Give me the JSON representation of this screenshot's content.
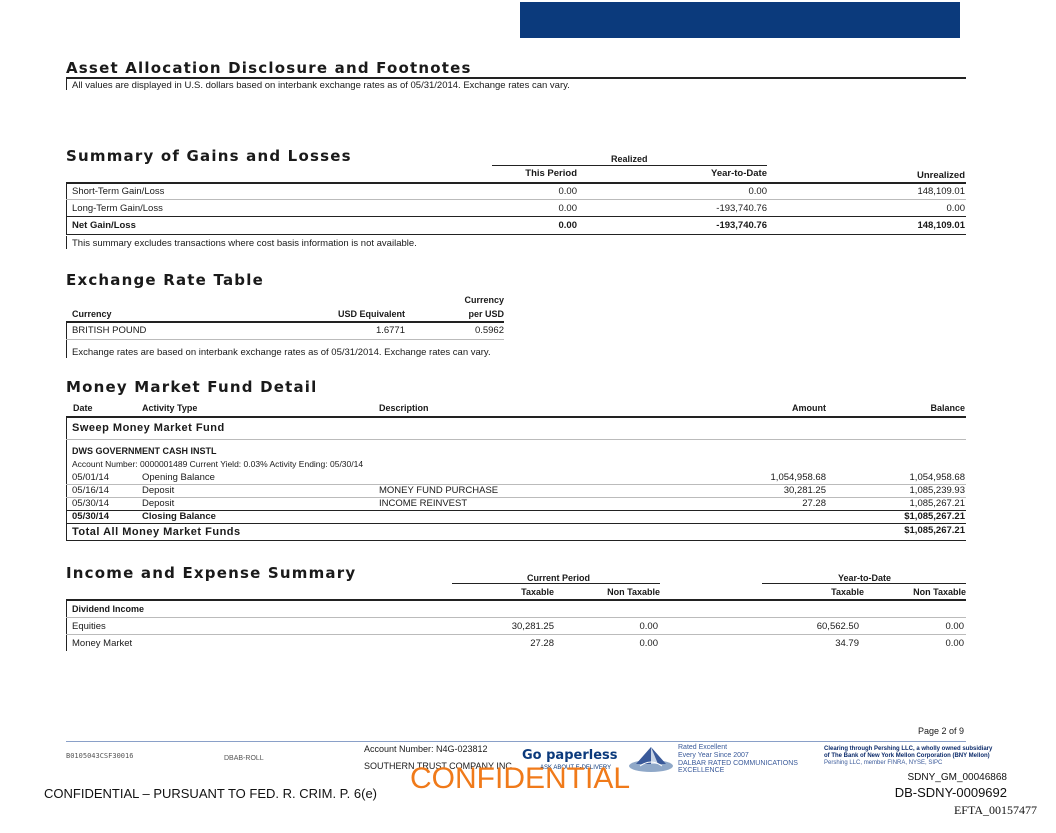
{
  "asset_allocation": {
    "title": "Asset Allocation Disclosure and Footnotes",
    "note": "All values are displayed in U.S. dollars based on interbank exchange rates as of 05/31/2014. Exchange rates can vary."
  },
  "gains_losses": {
    "title": "Summary of Gains and Losses",
    "realized_header": "Realized",
    "columns": [
      "This Period",
      "Year-to-Date",
      "Unrealized"
    ],
    "rows": [
      {
        "label": "Short-Term Gain/Loss",
        "this_period": "0.00",
        "ytd": "0.00",
        "unrealized": "148,109.01"
      },
      {
        "label": "Long-Term Gain/Loss",
        "this_period": "0.00",
        "ytd": "-193,740.76",
        "unrealized": "0.00"
      }
    ],
    "total": {
      "label": "Net Gain/Loss",
      "this_period": "0.00",
      "ytd": "-193,740.76",
      "unrealized": "148,109.01"
    },
    "note": "This summary excludes transactions where cost basis information is not available."
  },
  "exchange": {
    "title": "Exchange Rate Table",
    "col_currency": "Currency",
    "col_usd": "USD Equivalent",
    "col_per_usd_1": "Currency",
    "col_per_usd_2": "per USD",
    "row": {
      "currency": "BRITISH POUND",
      "usd": "1.6771",
      "per_usd": "0.5962"
    },
    "note": "Exchange rates are based on interbank exchange rates as of 05/31/2014.  Exchange rates can vary."
  },
  "mmf": {
    "title": "Money Market Fund Detail",
    "headers": {
      "date": "Date",
      "activity": "Activity Type",
      "description": "Description",
      "amount": "Amount",
      "balance": "Balance"
    },
    "sweep_title": "Sweep Money Market Fund",
    "fund_name": "DWS GOVERNMENT CASH INSTL",
    "account_line": "Account Number: 0000001489  Current Yield:  0.03%  Activity Ending: 05/30/14",
    "rows": [
      {
        "date": "05/01/14",
        "activity": "Opening Balance",
        "description": "",
        "amount": "1,054,958.68",
        "balance": "1,054,958.68"
      },
      {
        "date": "05/16/14",
        "activity": "Deposit",
        "description": "MONEY FUND PURCHASE",
        "amount": "30,281.25",
        "balance": "1,085,239.93"
      },
      {
        "date": "05/30/14",
        "activity": "Deposit",
        "description": "INCOME REINVEST",
        "amount": "27.28",
        "balance": "1,085,267.21"
      }
    ],
    "closing": {
      "date": "05/30/14",
      "activity": "Closing Balance",
      "balance": "$1,085,267.21"
    },
    "total": {
      "label": "Total All Money Market Funds",
      "balance": "$1,085,267.21"
    }
  },
  "income": {
    "title": "Income and Expense Summary",
    "current_period": "Current Period",
    "ytd": "Year-to-Date",
    "taxable": "Taxable",
    "non_taxable": "Non Taxable",
    "group": "Dividend Income",
    "rows": [
      {
        "label": "Equities",
        "cp_taxable": "30,281.25",
        "cp_non": "0.00",
        "ytd_taxable": "60,562.50",
        "ytd_non": "0.00"
      },
      {
        "label": "Money Market",
        "cp_taxable": "27.28",
        "cp_non": "0.00",
        "ytd_taxable": "34.79",
        "ytd_non": "0.00"
      }
    ]
  },
  "footer": {
    "page": "Page 2 of 9",
    "code": "B0105043CSF30016",
    "dbab": "DBAB-ROLL",
    "account": "Account Number: N4G-023812",
    "company": "SOUTHERN TRUST COMPANY INC",
    "go_paperless": "Go paperless",
    "ask_about": "ASK ABOUT E-DELIVERY",
    "rated_1": "Rated Excellent",
    "rated_2": "Every Year Since 2007",
    "rated_3": "DALBAR RATED COMMUNICATIONS",
    "rated_4": "EXCELLENCE",
    "clearing_1": "Clearing through Pershing LLC, a wholly owned subsidiary",
    "clearing_2": "of The Bank of New York Mellon Corporation (BNY Mellon)",
    "clearing_3": "Pershing LLC, member FINRA, NYSE, SIPC",
    "confidential_big": "CONFIDENTIAL",
    "confidential_line": "CONFIDENTIAL – PURSUANT TO FED. R. CRIM. P. 6(e)",
    "bates_1": "SDNY_GM_00046868",
    "bates_2": "DB-SDNY-0009692",
    "bates_3": "EFTA_00157477"
  }
}
